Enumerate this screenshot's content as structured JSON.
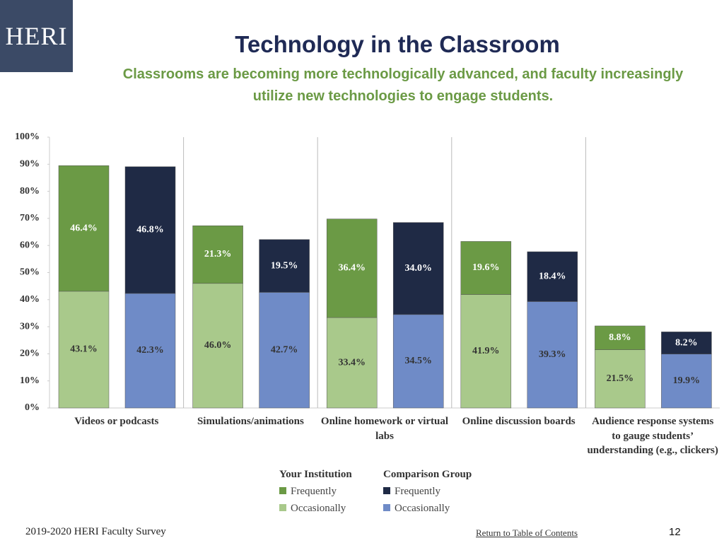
{
  "logo": "HERI",
  "footer": {
    "survey": "2019-2020 HERI Faculty Survey",
    "link": "Return to Table of Contents",
    "page": "12"
  },
  "chart_data": {
    "type": "grouped-stacked-bar",
    "title": "Technology in the Classroom",
    "subtitle": "Classrooms are becoming more technologically advanced, and faculty increasingly utilize new technologies to engage students.",
    "categories": [
      "Videos or podcasts",
      "Simulations/animations",
      "Online homework or virtual labs",
      "Online discussion boards",
      "Audience response systems to gauge students’ understanding (e.g., clickers)"
    ],
    "groups": [
      {
        "name": "Your Institution",
        "series": [
          {
            "name": "Frequently",
            "color": "#6b9a45",
            "values": [
              46.4,
              21.3,
              36.4,
              19.6,
              8.8
            ],
            "value_labels": [
              "46.4%",
              "21.3%",
              "36.4%",
              "19.6%",
              "8.8%"
            ]
          },
          {
            "name": "Occasionally",
            "color": "#a9c98b",
            "values": [
              43.1,
              46.0,
              33.4,
              41.9,
              21.5
            ],
            "value_labels": [
              "43.1%",
              "46.0%",
              "33.4%",
              "41.9%",
              "21.5%"
            ]
          }
        ]
      },
      {
        "name": "Comparison Group",
        "series": [
          {
            "name": "Frequently",
            "color": "#1f2a45",
            "values": [
              46.8,
              19.5,
              34.0,
              18.4,
              8.2
            ],
            "value_labels": [
              "46.8%",
              "19.5%",
              "34.0%",
              "18.4%",
              "8.2%"
            ]
          },
          {
            "name": "Occasionally",
            "color": "#6f8bc7",
            "values": [
              42.3,
              42.7,
              34.5,
              39.3,
              19.9
            ],
            "value_labels": [
              "42.3%",
              "42.7%",
              "34.5%",
              "39.3%",
              "19.9%"
            ]
          }
        ]
      }
    ],
    "ylim": [
      0,
      100
    ],
    "yticks": [
      {
        "value": 0,
        "label": "0%"
      },
      {
        "value": 10,
        "label": "10%"
      },
      {
        "value": 20,
        "label": "20%"
      },
      {
        "value": 30,
        "label": "30%"
      },
      {
        "value": 40,
        "label": "40%"
      },
      {
        "value": 50,
        "label": "50%"
      },
      {
        "value": 60,
        "label": "60%"
      },
      {
        "value": 70,
        "label": "70%"
      },
      {
        "value": 80,
        "label": "80%"
      },
      {
        "value": 90,
        "label": "90%"
      },
      {
        "value": 100,
        "label": "100%"
      }
    ],
    "grid": false
  }
}
